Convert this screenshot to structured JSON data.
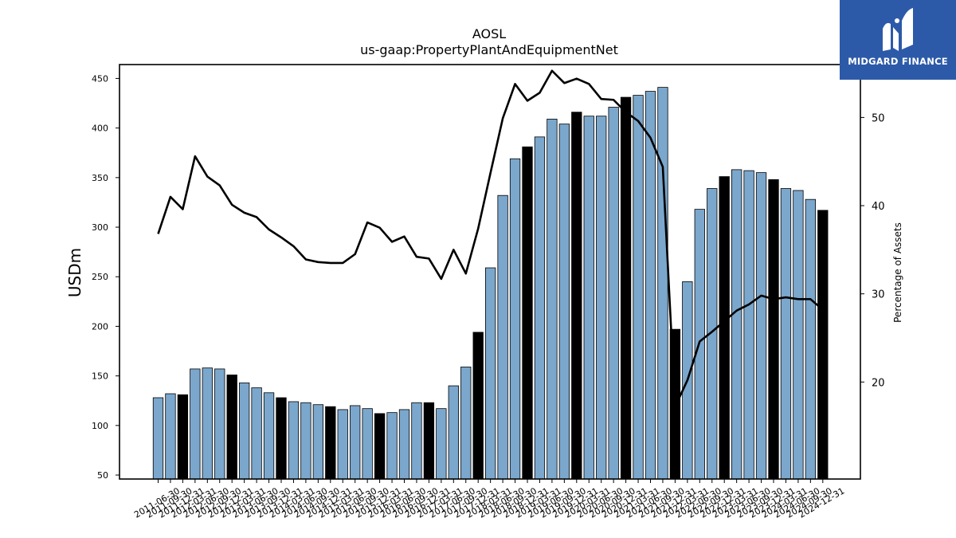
{
  "brand": {
    "name": "MIDGARD FINANCE",
    "color": "#2d5aa8"
  },
  "chart_data": {
    "type": "bar",
    "title": "AOSL",
    "subtitle": "us-gaap:PropertyPlantAndEquipmentNet",
    "ylabel": "USDm",
    "y2label": "Percentage of Assets",
    "ylim": [
      46,
      464
    ],
    "y2lim": [
      9,
      56
    ],
    "yticks": [
      50,
      100,
      150,
      200,
      250,
      300,
      350,
      400,
      450
    ],
    "y2ticks": [
      20,
      30,
      40,
      50
    ],
    "grid": false,
    "colors": {
      "bar": "#7ba7cc",
      "bar_fiscal_year_end": "#000000",
      "line": "#000000"
    },
    "categories": [
      "2011-06-30",
      "2011-09-30",
      "2011-12-31",
      "2012-03-31",
      "2012-06-30",
      "2012-09-30",
      "2012-12-31",
      "2013-03-31",
      "2013-06-30",
      "2013-09-30",
      "2013-12-31",
      "2014-03-31",
      "2014-06-30",
      "2014-09-30",
      "2014-12-31",
      "2015-03-31",
      "2015-06-30",
      "2015-09-30",
      "2015-12-31",
      "2016-03-31",
      "2016-06-30",
      "2016-09-30",
      "2016-12-31",
      "2017-03-31",
      "2017-06-30",
      "2017-09-30",
      "2017-12-31",
      "2018-03-31",
      "2018-06-30",
      "2018-09-30",
      "2018-12-31",
      "2019-03-31",
      "2019-06-30",
      "2019-09-30",
      "2019-12-31",
      "2020-03-31",
      "2020-06-30",
      "2020-09-30",
      "2020-12-31",
      "2021-03-31",
      "2021-06-30",
      "2021-09-30",
      "2021-12-31",
      "2022-03-31",
      "2022-06-30",
      "2022-09-30",
      "2022-12-31",
      "2023-03-31",
      "2023-06-30",
      "2023-09-30",
      "2023-12-31",
      "2024-03-31",
      "2024-06-30",
      "2024-09-30",
      "2024-12-31"
    ],
    "series": [
      {
        "kind": "bar",
        "values": [
          128,
          132,
          131,
          157,
          158,
          157,
          151,
          143,
          138,
          133,
          128,
          124,
          123,
          121,
          119,
          116,
          120,
          117,
          112,
          113,
          116,
          123,
          123,
          117,
          140,
          159,
          194,
          259,
          332,
          369,
          381,
          391,
          409,
          404,
          416,
          412,
          412,
          421,
          431,
          433,
          437,
          441,
          197,
          245,
          318,
          339,
          351,
          358,
          357,
          355,
          348,
          339,
          337,
          328,
          317
        ],
        "highlight": [
          false,
          false,
          true,
          false,
          false,
          false,
          true,
          false,
          false,
          false,
          true,
          false,
          false,
          false,
          true,
          false,
          false,
          false,
          true,
          false,
          false,
          false,
          true,
          false,
          false,
          false,
          true,
          false,
          false,
          false,
          true,
          false,
          false,
          false,
          true,
          false,
          false,
          false,
          true,
          false,
          false,
          false,
          true,
          false,
          false,
          false,
          true,
          false,
          false,
          false,
          true,
          false,
          false,
          false,
          true
        ]
      },
      {
        "kind": "line",
        "axis": "right",
        "values": [
          36.8,
          41.0,
          39.6,
          45.6,
          43.3,
          42.3,
          40.1,
          39.2,
          38.7,
          37.3,
          36.4,
          35.4,
          33.9,
          33.6,
          33.5,
          33.5,
          34.5,
          38.1,
          37.5,
          35.9,
          36.5,
          34.2,
          34.0,
          31.7,
          35.0,
          32.3,
          37.4,
          43.7,
          49.9,
          53.8,
          51.9,
          52.8,
          55.3,
          53.9,
          54.4,
          53.8,
          52.1,
          52.0,
          50.6,
          49.6,
          47.7,
          44.4,
          17.2,
          20.2,
          24.6,
          25.7,
          26.9,
          28.1,
          28.8,
          29.8,
          29.4,
          29.6,
          29.4,
          29.4,
          28.2
        ]
      }
    ]
  }
}
